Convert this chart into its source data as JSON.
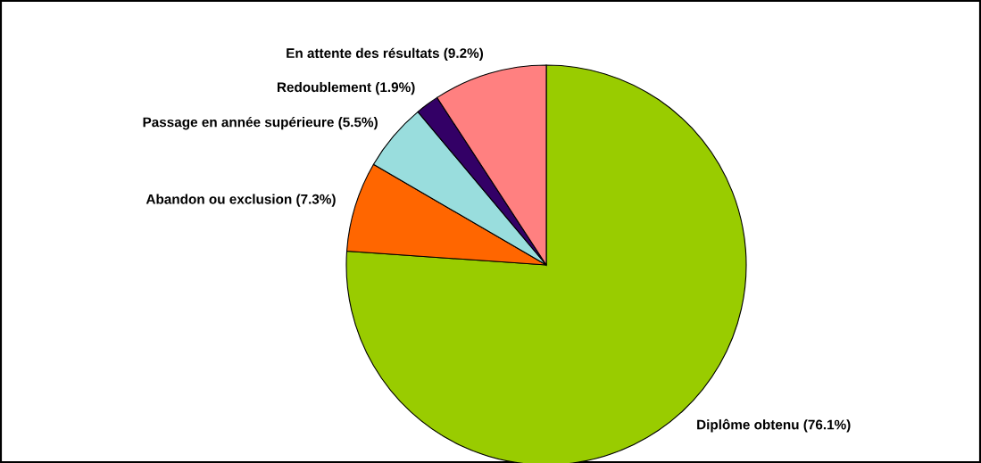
{
  "chart_data": {
    "type": "pie",
    "categories": [
      "Diplôme obtenu (76.1%)",
      "Abandon ou exclusion (7.3%)",
      "Passage en année supérieure (5.5%)",
      "Redoublement (1.9%)",
      "En attente des résultats (9.2%)"
    ],
    "values": [
      76.1,
      7.3,
      5.5,
      1.9,
      9.2
    ],
    "colors": [
      "#99cc00",
      "#ff6600",
      "#99dddd",
      "#330066",
      "#ff8080"
    ]
  }
}
